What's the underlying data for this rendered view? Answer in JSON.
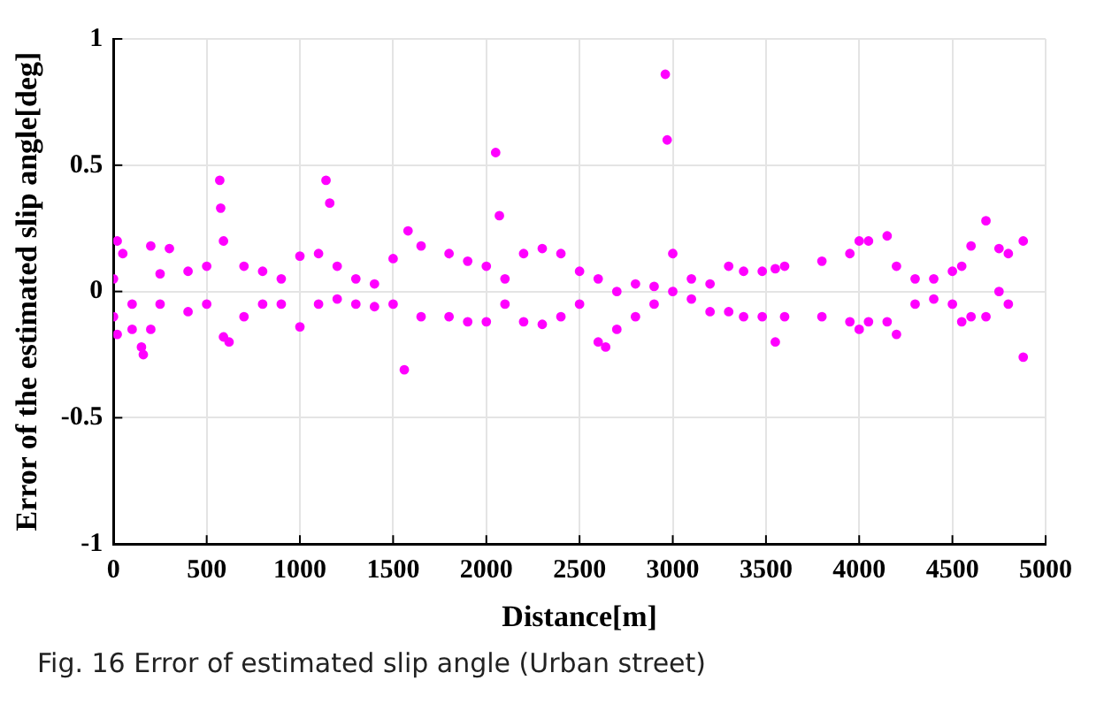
{
  "chart_data": {
    "type": "scatter",
    "xlabel": "Distance[m]",
    "ylabel": "Error of the estimated slip angle[deg]",
    "annotations": [
      "Fig. 16  Error of estimated slip angle (Urban street)"
    ],
    "xlim": [
      0,
      5000
    ],
    "xticks": [
      0,
      500,
      1000,
      1500,
      2000,
      2500,
      3000,
      3500,
      4000,
      4500,
      5000
    ],
    "ylim": [
      -1,
      1
    ],
    "yticks": [
      -1,
      -0.5,
      0,
      0.5,
      1
    ],
    "grid": true,
    "marker": "circle",
    "legend": false,
    "series": [
      {
        "color": "#ff00ff",
        "x": [
          0,
          0,
          20,
          20,
          50,
          100,
          100,
          150,
          160,
          200,
          200,
          250,
          250,
          300,
          400,
          400,
          500,
          500,
          570,
          575,
          590,
          590,
          620,
          700,
          700,
          800,
          800,
          900,
          900,
          1000,
          1000,
          1100,
          1100,
          1140,
          1160,
          1200,
          1200,
          1300,
          1300,
          1400,
          1400,
          1500,
          1500,
          1560,
          1580,
          1650,
          1650,
          1800,
          1800,
          1900,
          1900,
          2000,
          2000,
          2050,
          2070,
          2100,
          2100,
          2200,
          2200,
          2300,
          2300,
          2400,
          2400,
          2500,
          2500,
          2600,
          2600,
          2640,
          2700,
          2700,
          2800,
          2800,
          2900,
          2900,
          2960,
          2970,
          3000,
          3000,
          3100,
          3100,
          3200,
          3200,
          3300,
          3300,
          3380,
          3380,
          3480,
          3480,
          3550,
          3550,
          3600,
          3600,
          3800,
          3800,
          3950,
          3950,
          4000,
          4000,
          4050,
          4050,
          4150,
          4150,
          4200,
          4200,
          4300,
          4300,
          4400,
          4400,
          4500,
          4500,
          4550,
          4550,
          4600,
          4600,
          4680,
          4680,
          4750,
          4750,
          4800,
          4800,
          4880,
          4880
        ],
        "values": [
          0.05,
          -0.1,
          0.2,
          -0.17,
          0.15,
          -0.05,
          -0.15,
          -0.22,
          -0.25,
          0.18,
          -0.15,
          0.07,
          -0.05,
          0.17,
          0.08,
          -0.08,
          0.1,
          -0.05,
          0.44,
          0.33,
          0.2,
          -0.18,
          -0.2,
          0.1,
          -0.1,
          0.08,
          -0.05,
          0.05,
          -0.05,
          0.14,
          -0.14,
          0.15,
          -0.05,
          0.44,
          0.35,
          0.1,
          -0.03,
          0.05,
          -0.05,
          0.03,
          -0.06,
          0.13,
          -0.05,
          -0.31,
          0.24,
          0.18,
          -0.1,
          0.15,
          -0.1,
          0.12,
          -0.12,
          0.1,
          -0.12,
          0.55,
          0.3,
          0.05,
          -0.05,
          0.15,
          -0.12,
          0.17,
          -0.13,
          0.15,
          -0.1,
          0.08,
          -0.05,
          0.05,
          -0.2,
          -0.22,
          0,
          -0.15,
          0.03,
          -0.1,
          0.02,
          -0.05,
          0.86,
          0.6,
          0.15,
          0,
          0.05,
          -0.03,
          0.03,
          -0.08,
          0.1,
          -0.08,
          0.08,
          -0.1,
          0.08,
          -0.1,
          0.09,
          -0.2,
          0.1,
          -0.1,
          0.12,
          -0.1,
          0.15,
          -0.12,
          0.2,
          -0.15,
          0.2,
          -0.12,
          0.22,
          -0.12,
          0.1,
          -0.17,
          0.05,
          -0.05,
          0.05,
          -0.03,
          0.08,
          -0.05,
          0.1,
          -0.12,
          0.18,
          -0.1,
          0.28,
          -0.1,
          0.17,
          0,
          0.15,
          -0.05,
          0.2,
          -0.26
        ]
      }
    ]
  }
}
